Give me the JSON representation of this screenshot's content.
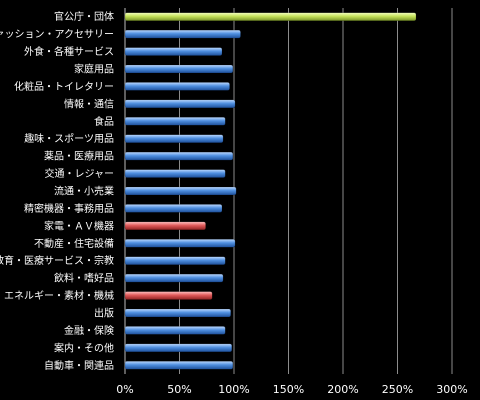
{
  "chart_data": {
    "type": "bar",
    "orientation": "horizontal",
    "categories": [
      "官公庁・団体",
      "ファッション・アクセサリー",
      "外食・各種サービス",
      "家庭用品",
      "化粧品・トイレタリー",
      "情報・通信",
      "食品",
      "趣味・スポーツ用品",
      "薬品・医療用品",
      "交通・レジャー",
      "流通・小売業",
      "精密機器・事務用品",
      "家電・ＡＶ機器",
      "不動産・住宅設備",
      "教育・医療サービス・宗教",
      "飲料・嗜好品",
      "エネルギー・素材・機械",
      "出版",
      "金融・保険",
      "案内・その他",
      "自動車・関連品"
    ],
    "values": [
      267,
      106,
      89,
      99,
      96,
      101,
      92,
      90,
      99,
      92,
      102,
      89,
      74,
      101,
      92,
      90,
      80,
      97,
      92,
      98,
      99
    ],
    "colors": [
      "#c6e35a",
      "#4f8fe0",
      "#4f8fe0",
      "#4f8fe0",
      "#4f8fe0",
      "#4f8fe0",
      "#4f8fe0",
      "#4f8fe0",
      "#4f8fe0",
      "#4f8fe0",
      "#4f8fe0",
      "#4f8fe0",
      "#e05a5a",
      "#4f8fe0",
      "#4f8fe0",
      "#4f8fe0",
      "#e05a5a",
      "#4f8fe0",
      "#4f8fe0",
      "#4f8fe0",
      "#4f8fe0"
    ],
    "xlim": [
      0,
      300
    ],
    "xticks": [
      0,
      50,
      100,
      150,
      200,
      250,
      300
    ],
    "xtick_labels": [
      "0%",
      "50%",
      "100%",
      "150%",
      "200%",
      "250%",
      "300%"
    ],
    "grid": true,
    "legend": false
  }
}
